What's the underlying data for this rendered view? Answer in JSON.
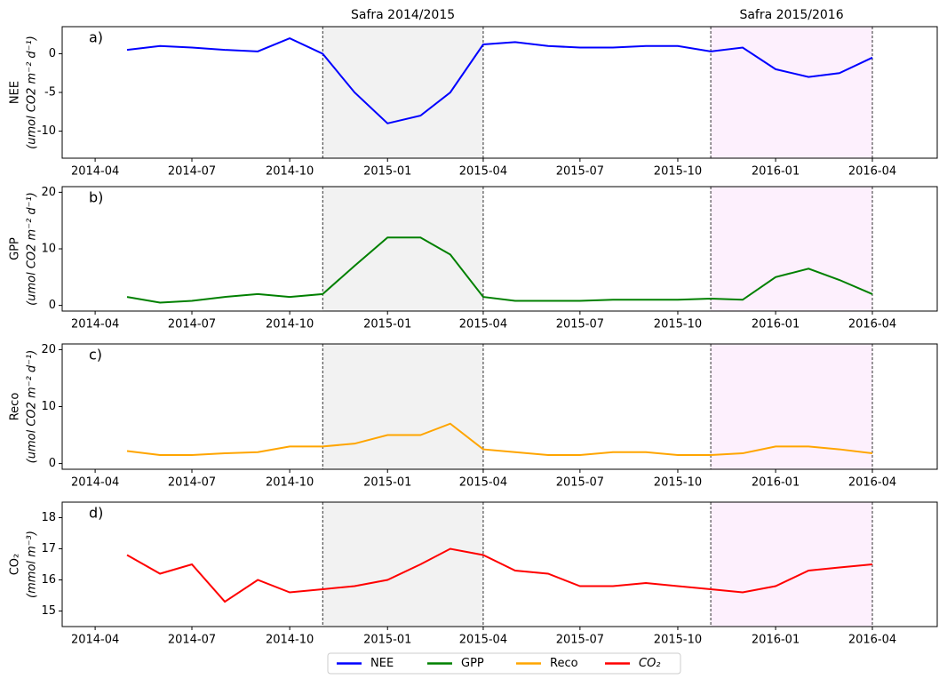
{
  "regions": [
    {
      "label": "Safra 2014/2015",
      "start": "2014-11",
      "end": "2015-04",
      "color": "#f2f2f2"
    },
    {
      "label": "Safra 2015/2016",
      "start": "2015-11",
      "end": "2016-04",
      "color": "#fdf0fd"
    }
  ],
  "chart_data": [
    {
      "type": "line",
      "panel_label": "a)",
      "ylabel": "NEE",
      "yunit": "(umol CO2 m⁻² d⁻¹)",
      "x": [
        "2014-05",
        "2014-06",
        "2014-07",
        "2014-08",
        "2014-09",
        "2014-10",
        "2014-11",
        "2014-12",
        "2015-01",
        "2015-02",
        "2015-03",
        "2015-04",
        "2015-05",
        "2015-06",
        "2015-07",
        "2015-08",
        "2015-09",
        "2015-10",
        "2015-11",
        "2015-12",
        "2016-01",
        "2016-02",
        "2016-03",
        "2016-04"
      ],
      "series": [
        {
          "name": "NEE",
          "color": "#0000ff",
          "values": [
            0.5,
            1,
            0.8,
            0.5,
            0.3,
            2,
            0,
            -5,
            -9,
            -8,
            -5,
            1.2,
            1.5,
            1,
            0.8,
            0.8,
            1,
            1,
            0.3,
            0.8,
            -2,
            -3,
            -2.5,
            -0.5
          ]
        }
      ],
      "xlim": [
        "2014-03",
        "2016-06"
      ],
      "xticks": [
        "2014-04",
        "2014-07",
        "2014-10",
        "2015-01",
        "2015-04",
        "2015-07",
        "2015-10",
        "2016-01",
        "2016-04"
      ],
      "ylim": [
        -13.5,
        3.5
      ],
      "yticks": [
        -10,
        -5,
        0
      ]
    },
    {
      "type": "line",
      "panel_label": "b)",
      "ylabel": "GPP",
      "yunit": "(umol CO2 m⁻² d⁻¹)",
      "x": [
        "2014-05",
        "2014-06",
        "2014-07",
        "2014-08",
        "2014-09",
        "2014-10",
        "2014-11",
        "2014-12",
        "2015-01",
        "2015-02",
        "2015-03",
        "2015-04",
        "2015-05",
        "2015-06",
        "2015-07",
        "2015-08",
        "2015-09",
        "2015-10",
        "2015-11",
        "2015-12",
        "2016-01",
        "2016-02",
        "2016-03",
        "2016-04"
      ],
      "series": [
        {
          "name": "GPP",
          "color": "#008000",
          "values": [
            1.5,
            0.5,
            0.8,
            1.5,
            2,
            1.5,
            2,
            7,
            12,
            12,
            9,
            1.5,
            0.8,
            0.8,
            0.8,
            1,
            1,
            1,
            1.2,
            1,
            5,
            6.5,
            4.5,
            2
          ]
        }
      ],
      "xlim": [
        "2014-03",
        "2016-06"
      ],
      "xticks": [
        "2014-04",
        "2014-07",
        "2014-10",
        "2015-01",
        "2015-04",
        "2015-07",
        "2015-10",
        "2016-01",
        "2016-04"
      ],
      "ylim": [
        -1,
        21
      ],
      "yticks": [
        0,
        10,
        20
      ]
    },
    {
      "type": "line",
      "panel_label": "c)",
      "ylabel": "Reco",
      "yunit": "(umol CO2 m⁻² d⁻¹)",
      "x": [
        "2014-05",
        "2014-06",
        "2014-07",
        "2014-08",
        "2014-09",
        "2014-10",
        "2014-11",
        "2014-12",
        "2015-01",
        "2015-02",
        "2015-03",
        "2015-04",
        "2015-05",
        "2015-06",
        "2015-07",
        "2015-08",
        "2015-09",
        "2015-10",
        "2015-11",
        "2015-12",
        "2016-01",
        "2016-02",
        "2016-03",
        "2016-04"
      ],
      "series": [
        {
          "name": "Reco",
          "color": "#ffa500",
          "values": [
            2.2,
            1.5,
            1.5,
            1.8,
            2,
            3,
            3,
            3.5,
            5,
            5,
            7,
            2.5,
            2,
            1.5,
            1.5,
            2,
            2,
            1.5,
            1.5,
            1.8,
            3,
            3,
            2.5,
            1.8
          ]
        }
      ],
      "xlim": [
        "2014-03",
        "2016-06"
      ],
      "xticks": [
        "2014-04",
        "2014-07",
        "2014-10",
        "2015-01",
        "2015-04",
        "2015-07",
        "2015-10",
        "2016-01",
        "2016-04"
      ],
      "ylim": [
        -1,
        21
      ],
      "yticks": [
        0,
        10,
        20
      ]
    },
    {
      "type": "line",
      "panel_label": "d)",
      "ylabel": "CO₂",
      "yunit": "(mmol m⁻³)",
      "x": [
        "2014-05",
        "2014-06",
        "2014-07",
        "2014-08",
        "2014-09",
        "2014-10",
        "2014-11",
        "2014-12",
        "2015-01",
        "2015-02",
        "2015-03",
        "2015-04",
        "2015-05",
        "2015-06",
        "2015-07",
        "2015-08",
        "2015-09",
        "2015-10",
        "2015-11",
        "2015-12",
        "2016-01",
        "2016-02",
        "2016-03",
        "2016-04"
      ],
      "series": [
        {
          "name": "CO₂",
          "color": "#ff0000",
          "values": [
            16.8,
            16.2,
            16.5,
            15.3,
            16,
            15.6,
            15.7,
            15.8,
            16,
            16.5,
            17,
            16.8,
            16.3,
            16.2,
            15.8,
            15.8,
            15.9,
            15.8,
            15.7,
            15.6,
            15.8,
            16.3,
            16.4,
            16.5
          ]
        }
      ],
      "xlim": [
        "2014-03",
        "2016-06"
      ],
      "xticks": [
        "2014-04",
        "2014-07",
        "2014-10",
        "2015-01",
        "2015-04",
        "2015-07",
        "2015-10",
        "2016-01",
        "2016-04"
      ],
      "ylim": [
        14.5,
        18.5
      ],
      "yticks": [
        15,
        16,
        17,
        18
      ]
    }
  ]
}
